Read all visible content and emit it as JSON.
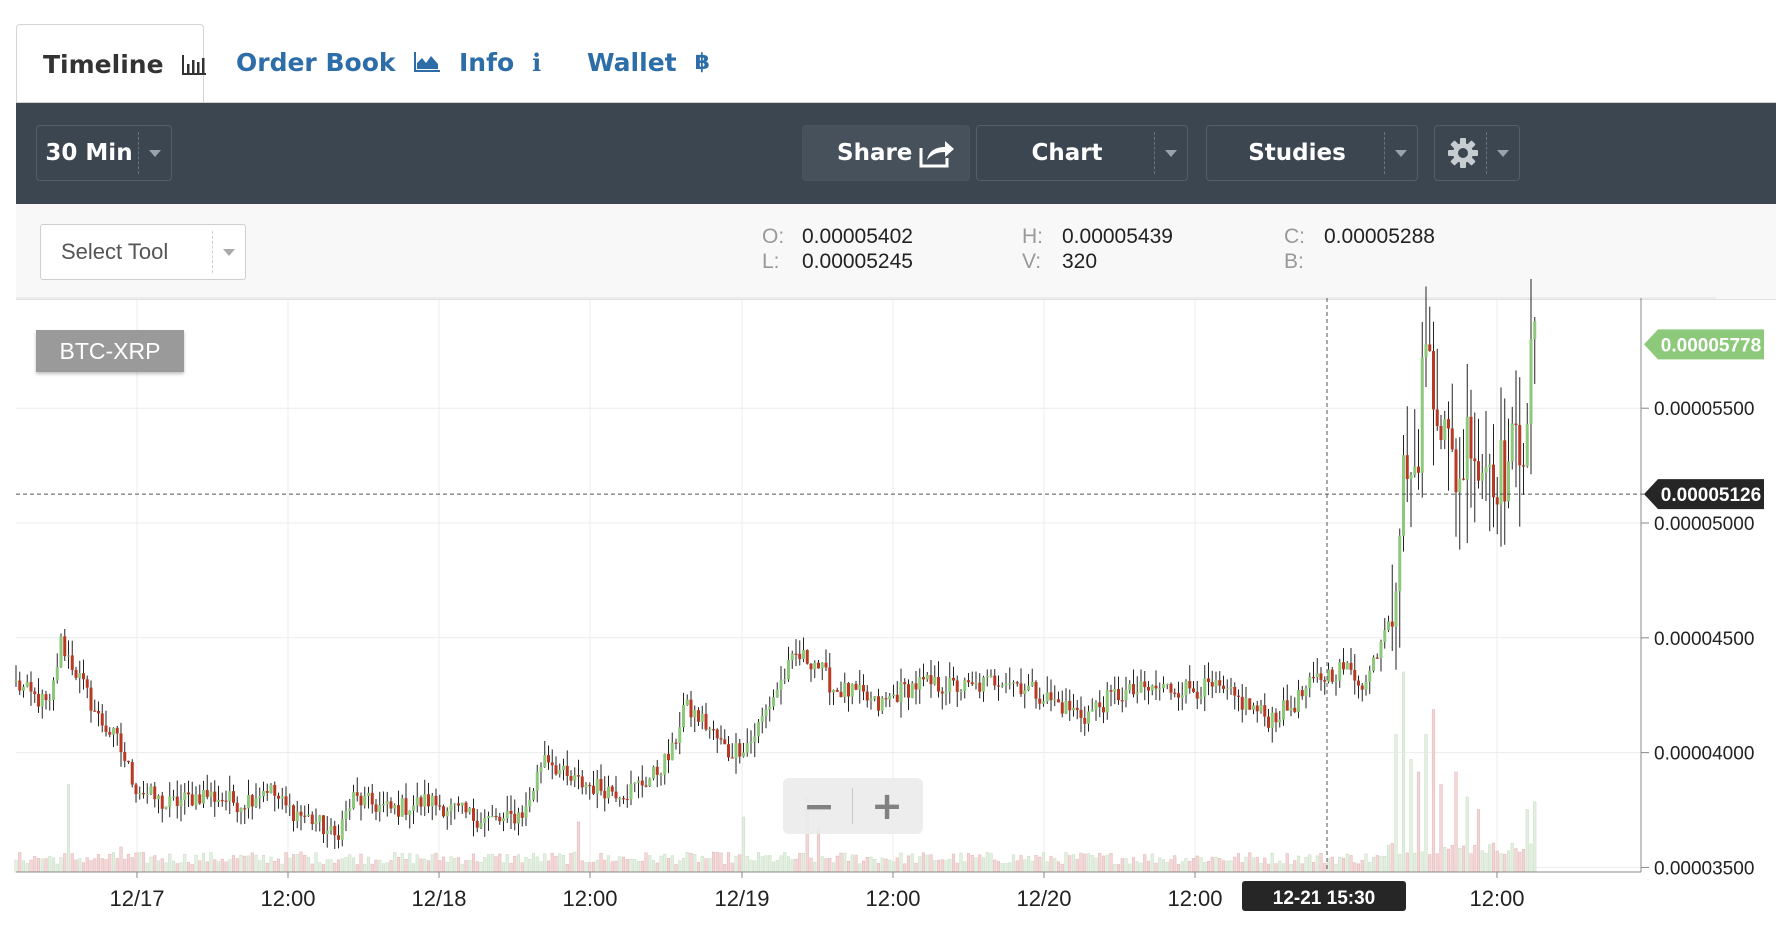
{
  "tabs": [
    {
      "label": "Timeline",
      "icon": "bar-chart-icon",
      "active": true
    },
    {
      "label": "Order Book",
      "icon": "area-chart-icon",
      "active": false
    },
    {
      "label": "Info",
      "icon": "info-icon",
      "active": false
    },
    {
      "label": "Wallet",
      "icon": "bitcoin-icon",
      "active": false
    }
  ],
  "toolbar": {
    "period": "30 Min",
    "share": "Share",
    "chart": "Chart",
    "studies": "Studies"
  },
  "tools": {
    "select_tool": "Select Tool"
  },
  "ohlc": {
    "o_label": "O:",
    "o": "0.00005402",
    "l_label": "L:",
    "l": "0.00005245",
    "h_label": "H:",
    "h": "0.00005439",
    "v_label": "V:",
    "v": "320",
    "c_label": "C:",
    "c": "0.00005288",
    "b_label": "B:",
    "b": ""
  },
  "symbol": "BTC-XRP",
  "zoom": {
    "minus": "−",
    "plus": "+"
  },
  "colors": {
    "up": "#8cc97a",
    "down": "#b83a24",
    "vol_up": "#e3efe0",
    "vol_down": "#f3d6d6",
    "toolbar": "#3c4650",
    "link": "#2e6ea8"
  },
  "chart_data": {
    "type": "candlestick",
    "xlabels": [
      "12/17",
      "12:00",
      "12/18",
      "12:00",
      "12/19",
      "12:00",
      "12/20",
      "12:00",
      "12:00"
    ],
    "ylabels": [
      "0.00005500",
      "0.00005000",
      "0.00004500",
      "0.00004000",
      "0.00003500"
    ],
    "ylim": [
      3.48e-05,
      5.98e-05
    ],
    "last_price": "0.00005778",
    "crosshair_price": "0.00005126",
    "crosshair_time": "12-21 15:30",
    "close_anchors": [
      [
        0,
        4.3e-05
      ],
      [
        4,
        4.25e-05
      ],
      [
        9,
        4.2e-05
      ],
      [
        12,
        4.48e-05
      ],
      [
        17,
        4.32e-05
      ],
      [
        22,
        4.15e-05
      ],
      [
        27,
        4.05e-05
      ],
      [
        32,
        3.85e-05
      ],
      [
        40,
        3.77e-05
      ],
      [
        50,
        3.82e-05
      ],
      [
        60,
        3.78e-05
      ],
      [
        67,
        3.85e-05
      ],
      [
        72,
        3.76e-05
      ],
      [
        80,
        3.7e-05
      ],
      [
        85,
        3.63e-05
      ],
      [
        90,
        3.8e-05
      ],
      [
        100,
        3.75e-05
      ],
      [
        110,
        3.79e-05
      ],
      [
        122,
        3.72e-05
      ],
      [
        130,
        3.7e-05
      ],
      [
        136,
        3.75e-05
      ],
      [
        141,
        4e-05
      ],
      [
        147,
        3.88e-05
      ],
      [
        155,
        3.85e-05
      ],
      [
        163,
        3.83e-05
      ],
      [
        170,
        3.9e-05
      ],
      [
        175,
        4e-05
      ],
      [
        178,
        4.2e-05
      ],
      [
        183,
        4.14e-05
      ],
      [
        190,
        4e-05
      ],
      [
        196,
        4.05e-05
      ],
      [
        203,
        4.28e-05
      ],
      [
        208,
        4.42e-05
      ],
      [
        213,
        4.4e-05
      ],
      [
        218,
        4.28e-05
      ],
      [
        225,
        4.25e-05
      ],
      [
        230,
        4.2e-05
      ],
      [
        236,
        4.27e-05
      ],
      [
        241,
        4.3e-05
      ],
      [
        255,
        4.28e-05
      ],
      [
        263,
        4.33e-05
      ],
      [
        270,
        4.28e-05
      ],
      [
        277,
        4.22e-05
      ],
      [
        285,
        4.16e-05
      ],
      [
        293,
        4.25e-05
      ],
      [
        305,
        4.28e-05
      ],
      [
        319,
        4.28e-05
      ],
      [
        327,
        4.22e-05
      ],
      [
        334,
        4.15e-05
      ],
      [
        340,
        4.2e-05
      ],
      [
        347,
        4.32e-05
      ],
      [
        354,
        4.37e-05
      ],
      [
        360,
        4.3e-05
      ],
      [
        363,
        4.45e-05
      ],
      [
        367,
        4.66e-05
      ],
      [
        369,
        5.02e-05
      ],
      [
        371,
        5.33e-05
      ],
      [
        373,
        5.1e-05
      ],
      [
        375,
        5.65e-05
      ],
      [
        377,
        5.78e-05
      ],
      [
        379,
        5.55e-05
      ],
      [
        382,
        5.3e-05
      ],
      [
        385,
        5.2e-05
      ],
      [
        388,
        5.45e-05
      ],
      [
        390,
        5.25e-05
      ],
      [
        393,
        5.28e-05
      ],
      [
        396,
        5.22e-05
      ],
      [
        399,
        5.28e-05
      ],
      [
        402,
        5.4e-05
      ],
      [
        405,
        5.78e-05
      ]
    ],
    "volume_spikes": [
      [
        14,
        0.35
      ],
      [
        28,
        0.1
      ],
      [
        76,
        0.08
      ],
      [
        150,
        0.2
      ],
      [
        194,
        0.22
      ],
      [
        211,
        0.3
      ],
      [
        214,
        0.18
      ],
      [
        368,
        0.55
      ],
      [
        370,
        0.8
      ],
      [
        372,
        0.45
      ],
      [
        374,
        0.4
      ],
      [
        376,
        0.55
      ],
      [
        378,
        0.65
      ],
      [
        380,
        0.35
      ],
      [
        384,
        0.4
      ],
      [
        387,
        0.3
      ],
      [
        390,
        0.25
      ],
      [
        403,
        0.25
      ],
      [
        405,
        0.28
      ]
    ]
  }
}
